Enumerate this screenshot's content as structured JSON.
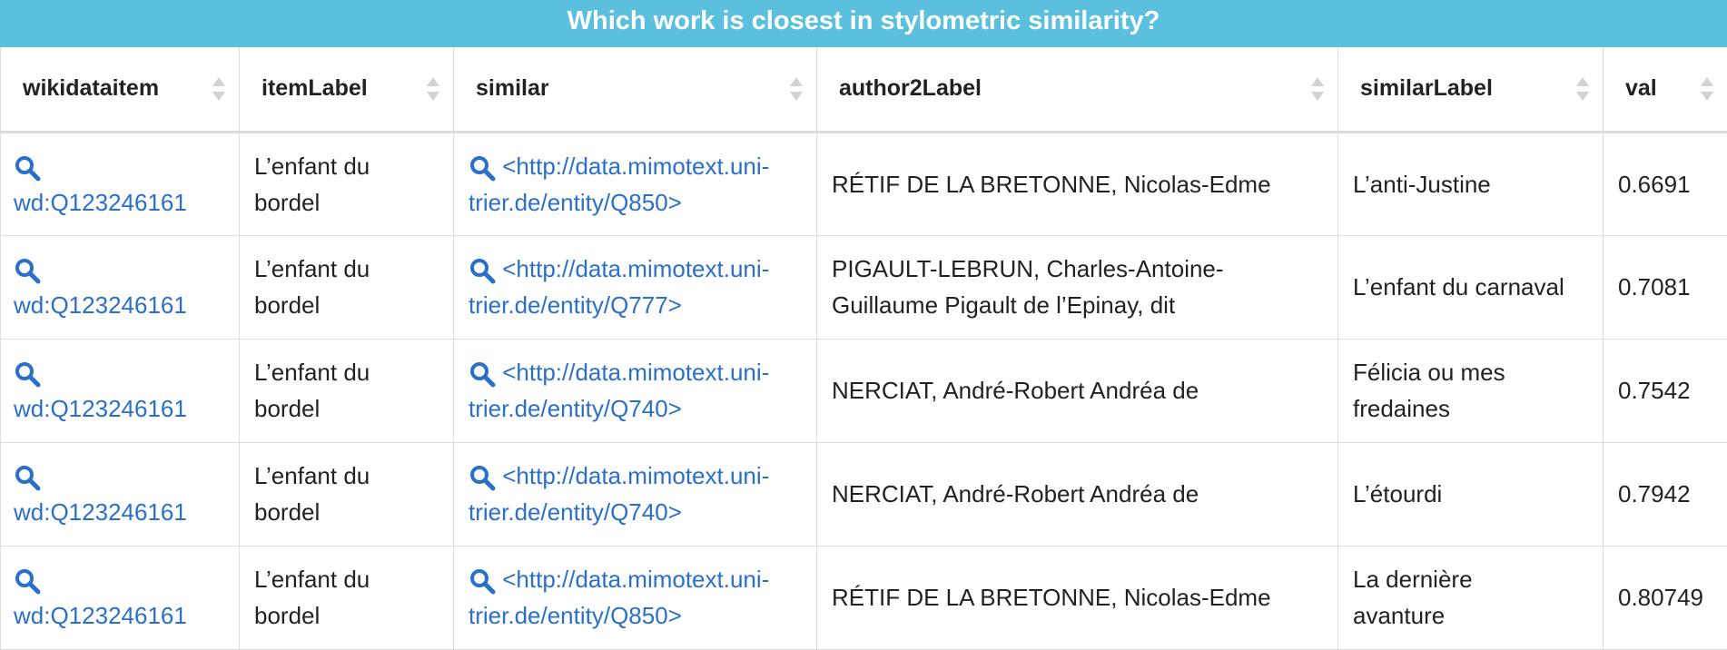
{
  "title": "Which work is closest in stylometric similarity?",
  "columns": [
    "wikidataitem",
    "itemLabel",
    "similar",
    "author2Label",
    "similarLabel",
    "val"
  ],
  "rows": [
    {
      "wikidataitem": "wd:Q123246161",
      "itemLabel_line1": "L’enfant du",
      "itemLabel_line2": "bordel",
      "similar_line1": "<http://data.mimotext.uni-",
      "similar_line2": "trier.de/entity/Q850>",
      "author2Label_line1": "RÉTIF DE LA BRETONNE, Nicolas-Edme",
      "author2Label_line2": "",
      "similarLabel_line1": "L’anti-Justine",
      "similarLabel_line2": "",
      "val": "0.6691"
    },
    {
      "wikidataitem": "wd:Q123246161",
      "itemLabel_line1": "L’enfant du",
      "itemLabel_line2": "bordel",
      "similar_line1": "<http://data.mimotext.uni-",
      "similar_line2": "trier.de/entity/Q777>",
      "author2Label_line1": "PIGAULT-LEBRUN, Charles-Antoine-",
      "author2Label_line2": "Guillaume Pigault de l’Epinay, dit",
      "similarLabel_line1": "L’enfant du carnaval",
      "similarLabel_line2": "",
      "val": "0.7081"
    },
    {
      "wikidataitem": "wd:Q123246161",
      "itemLabel_line1": "L’enfant du",
      "itemLabel_line2": "bordel",
      "similar_line1": "<http://data.mimotext.uni-",
      "similar_line2": "trier.de/entity/Q740>",
      "author2Label_line1": "NERCIAT, André-Robert Andréa de",
      "author2Label_line2": "",
      "similarLabel_line1": "Félicia ou mes",
      "similarLabel_line2": "fredaines",
      "val": "0.7542"
    },
    {
      "wikidataitem": "wd:Q123246161",
      "itemLabel_line1": "L’enfant du",
      "itemLabel_line2": "bordel",
      "similar_line1": "<http://data.mimotext.uni-",
      "similar_line2": "trier.de/entity/Q740>",
      "author2Label_line1": "NERCIAT, André-Robert Andréa de",
      "author2Label_line2": "",
      "similarLabel_line1": "L’étourdi",
      "similarLabel_line2": "",
      "val": "0.7942"
    },
    {
      "wikidataitem": "wd:Q123246161",
      "itemLabel_line1": "L’enfant du",
      "itemLabel_line2": "bordel",
      "similar_line1": "<http://data.mimotext.uni-",
      "similar_line2": "trier.de/entity/Q850>",
      "author2Label_line1": "RÉTIF DE LA BRETONNE, Nicolas-Edme",
      "author2Label_line2": "",
      "similarLabel_line1": "La dernière",
      "similarLabel_line2": "avanture",
      "val": "0.80749"
    }
  ],
  "icons": {
    "explore": "magnifier-icon",
    "sort": "sort-arrows-icon"
  },
  "colors": {
    "title_bg": "#5bc0de",
    "link": "#2a6fc9"
  }
}
